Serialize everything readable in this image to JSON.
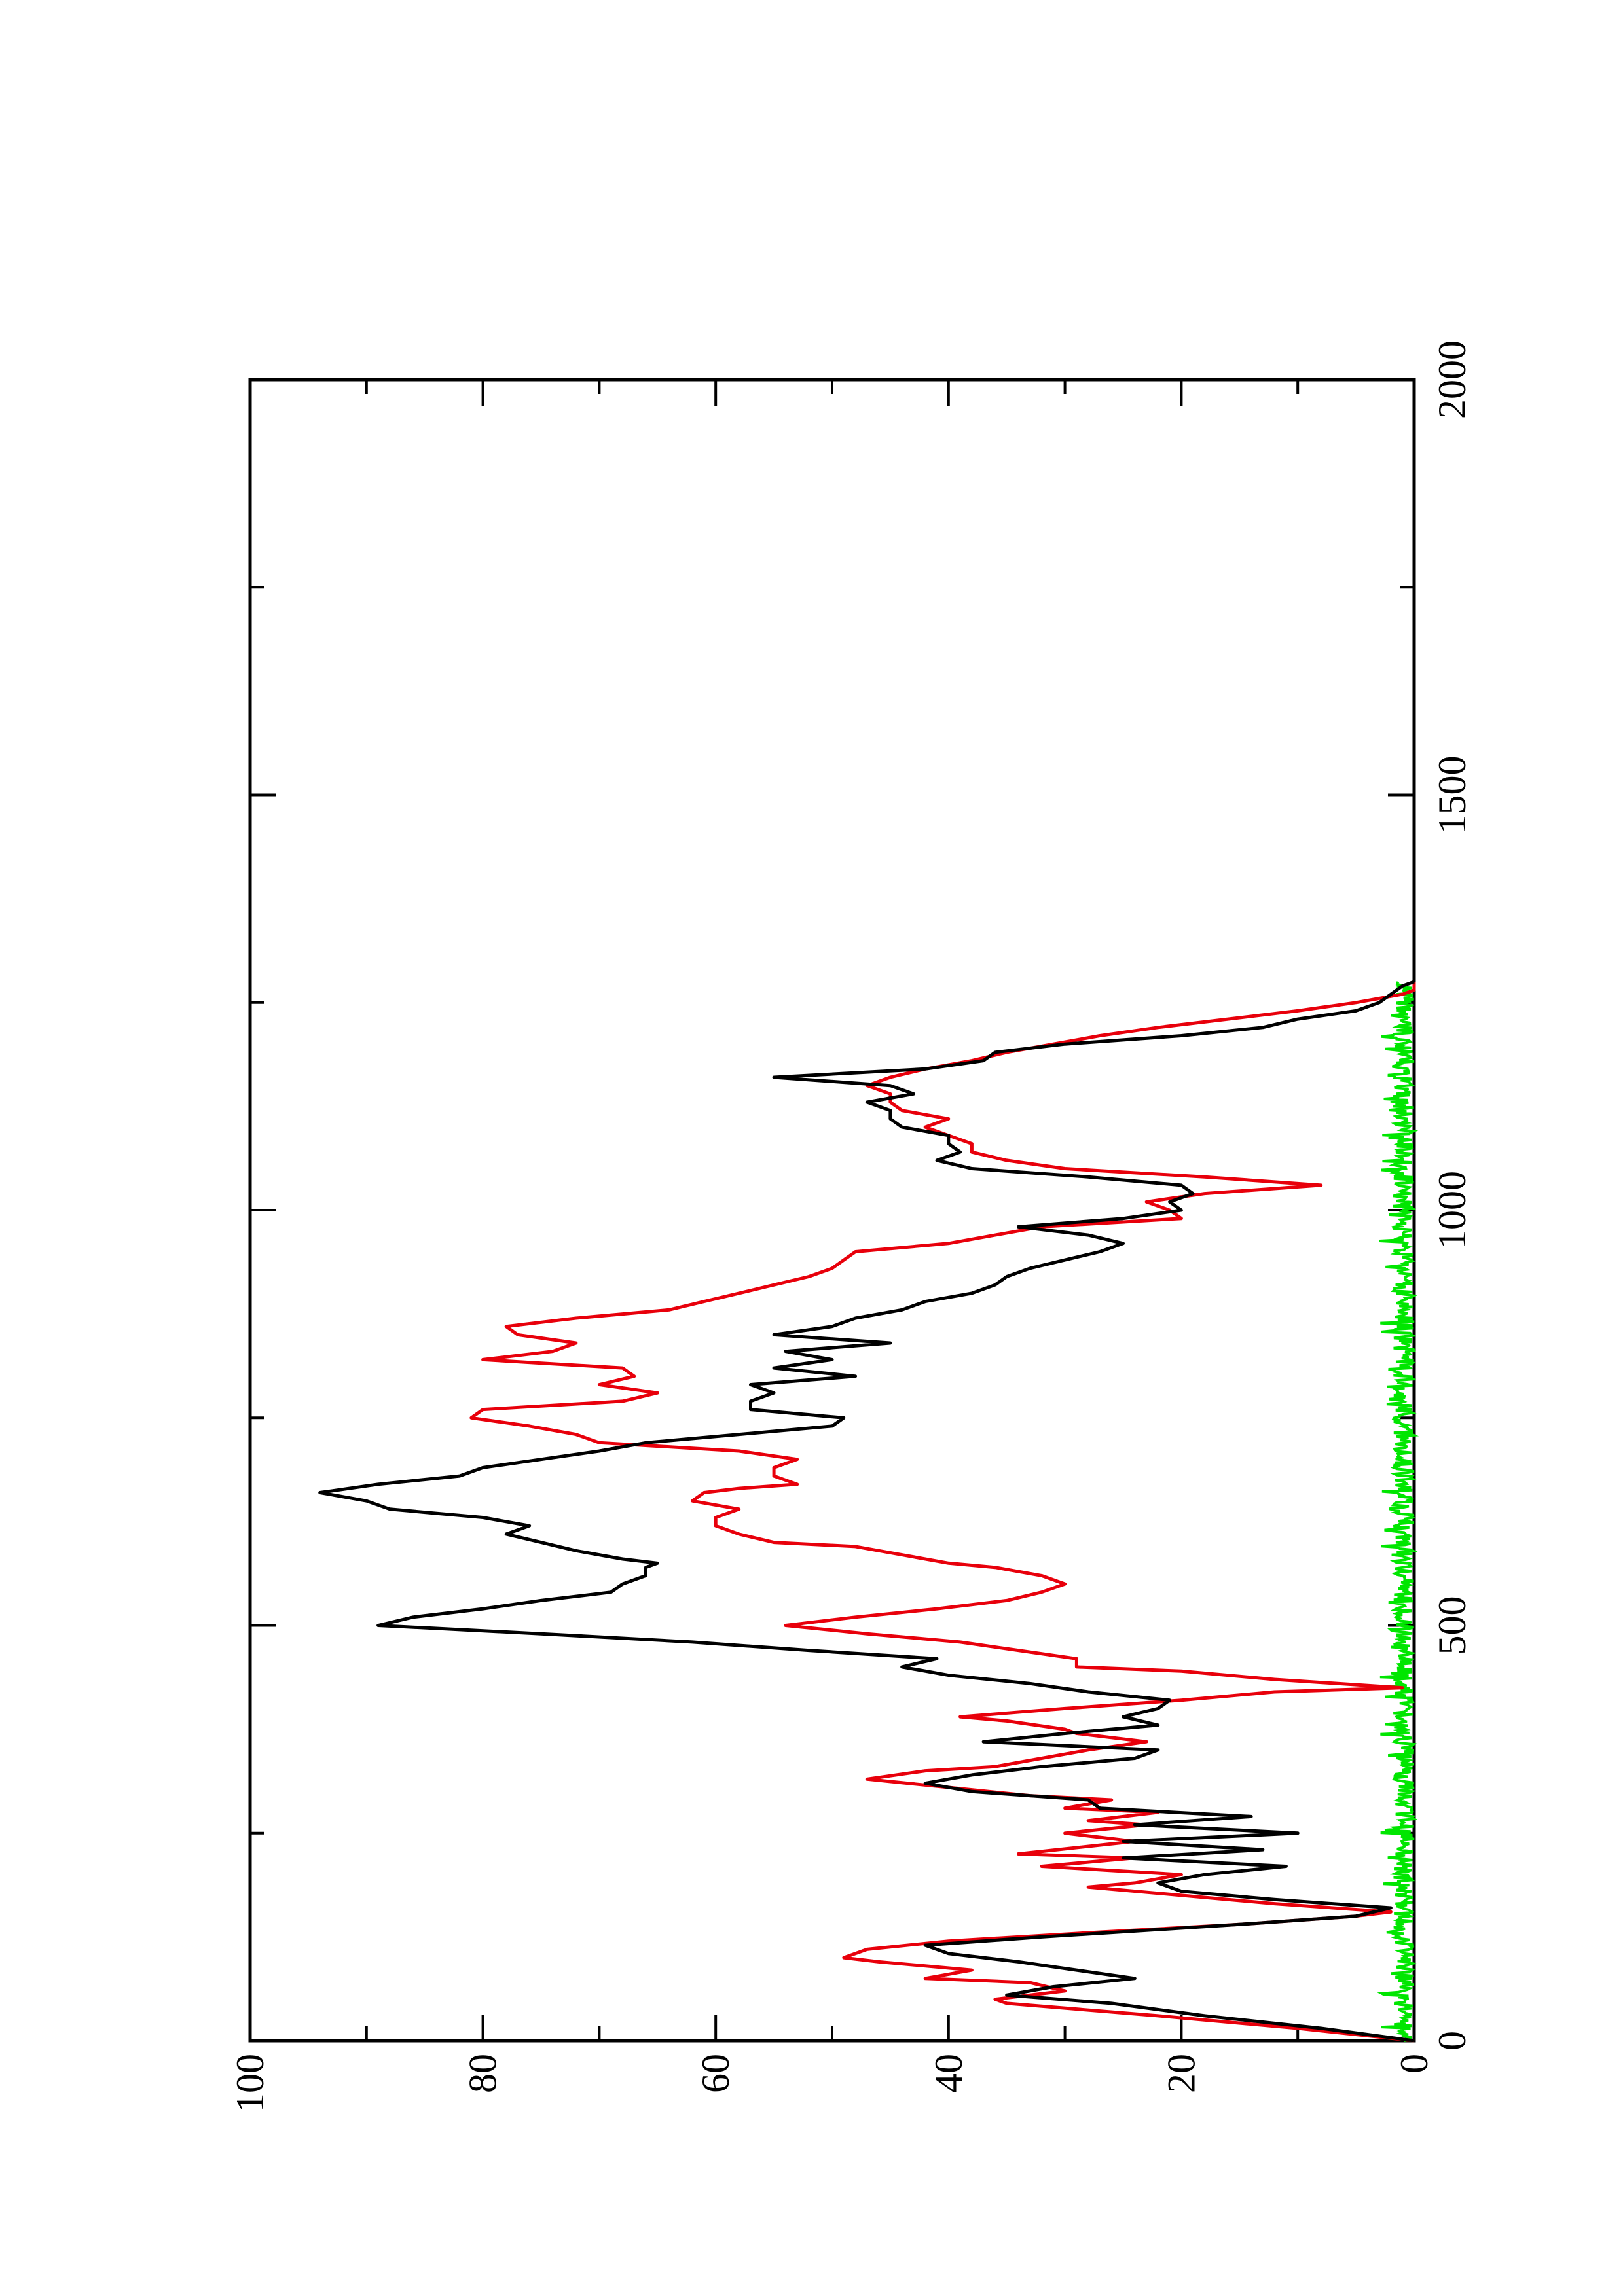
{
  "chart_data": {
    "type": "line",
    "orientation": "rotated-90-ccw",
    "title": "",
    "xlabel": "",
    "ylabel": "",
    "xlim": [
      0,
      2000
    ],
    "ylim": [
      0,
      100
    ],
    "x_ticks": [
      "0",
      "500",
      "1000",
      "1500",
      "2000"
    ],
    "y_ticks": [
      "0",
      "20",
      "40",
      "60",
      "80",
      "100"
    ],
    "grid": false,
    "legend": "none",
    "series": [
      {
        "color": "#000000",
        "x": [
          0,
          15,
          30,
          45,
          55,
          65,
          75,
          85,
          95,
          105,
          115,
          125,
          140,
          150,
          160,
          170,
          180,
          190,
          200,
          210,
          220,
          230,
          240,
          250,
          260,
          270,
          280,
          290,
          300,
          310,
          320,
          330,
          340,
          350,
          360,
          370,
          380,
          390,
          400,
          410,
          420,
          430,
          440,
          450,
          460,
          470,
          480,
          490,
          500,
          510,
          520,
          530,
          540,
          550,
          560,
          570,
          575,
          580,
          590,
          600,
          610,
          620,
          630,
          640,
          650,
          660,
          670,
          680,
          690,
          700,
          710,
          720,
          730,
          740,
          750,
          760,
          770,
          780,
          790,
          800,
          810,
          820,
          830,
          840,
          850,
          860,
          870,
          880,
          890,
          900,
          910,
          920,
          930,
          940,
          950,
          960,
          970,
          980,
          990,
          1000,
          1010,
          1020,
          1030,
          1040,
          1050,
          1060,
          1070,
          1080,
          1090,
          1100,
          1110,
          1120,
          1130,
          1140,
          1150,
          1160,
          1170,
          1180,
          1190,
          1200,
          1210,
          1220,
          1230,
          1240,
          1250,
          1260,
          1270,
          1275
        ],
        "y": [
          0,
          8,
          18,
          26,
          35,
          31,
          24,
          29,
          34,
          40,
          42,
          32,
          15,
          5,
          2,
          12,
          20,
          22,
          18,
          11,
          25,
          13,
          25,
          10,
          24,
          14,
          27,
          28,
          38,
          42,
          38,
          32,
          24,
          22,
          37,
          30,
          22,
          25,
          22,
          21,
          28,
          33,
          40,
          44,
          41,
          52,
          62,
          75,
          89,
          86,
          80,
          75,
          69,
          68,
          66,
          66,
          65,
          68,
          72,
          75,
          78,
          76,
          80,
          88,
          90,
          94,
          89,
          82,
          80,
          75,
          70,
          66,
          58,
          50,
          49,
          57,
          57,
          55,
          57,
          48,
          55,
          50,
          54,
          45,
          55,
          50,
          48,
          44,
          42,
          38,
          36,
          35,
          33,
          30,
          27,
          25,
          28,
          34,
          25,
          20,
          21,
          19,
          20,
          28,
          38,
          41,
          39,
          40,
          40,
          44,
          45,
          45,
          47,
          43,
          45,
          55,
          42,
          37,
          36,
          30,
          20,
          13,
          10,
          5,
          3,
          2,
          1,
          0
        ]
      },
      {
        "color": "#e8000b",
        "x": [
          0,
          15,
          30,
          45,
          50,
          60,
          70,
          75,
          85,
          95,
          100,
          110,
          120,
          130,
          140,
          150,
          155,
          165,
          175,
          185,
          190,
          200,
          210,
          220,
          225,
          240,
          250,
          260,
          265,
          275,
          280,
          290,
          295,
          305,
          315,
          325,
          330,
          340,
          350,
          360,
          370,
          375,
          385,
          390,
          400,
          410,
          420,
          425,
          435,
          445,
          450,
          460,
          470,
          480,
          490,
          500,
          510,
          520,
          530,
          540,
          550,
          560,
          570,
          575,
          585,
          595,
          600,
          610,
          620,
          630,
          640,
          650,
          660,
          665,
          670,
          680,
          690,
          700,
          710,
          720,
          730,
          740,
          750,
          760,
          770,
          780,
          790,
          800,
          810,
          820,
          830,
          840,
          850,
          860,
          870,
          880,
          890,
          900,
          910,
          920,
          930,
          940,
          950,
          960,
          970,
          980,
          990,
          1000,
          1010,
          1020,
          1030,
          1040,
          1050,
          1060,
          1070,
          1080,
          1090,
          1100,
          1110,
          1120,
          1130,
          1140,
          1150,
          1160,
          1170,
          1180,
          1190,
          1200,
          1210,
          1220,
          1230,
          1240,
          1250,
          1260,
          1265,
          1275
        ],
        "y": [
          0,
          10,
          22,
          35,
          36,
          30,
          33,
          42,
          38,
          46,
          49,
          47,
          40,
          28,
          15,
          5,
          2,
          12,
          20,
          28,
          24,
          20,
          32,
          24,
          34,
          24,
          30,
          23,
          28,
          22,
          30,
          26,
          33,
          40,
          47,
          42,
          36,
          32,
          28,
          23,
          29,
          30,
          35,
          39,
          30,
          20,
          12,
          1,
          12,
          20,
          29,
          29,
          34,
          39,
          47,
          54,
          48,
          41,
          35,
          32,
          30,
          32,
          36,
          40,
          44,
          48,
          55,
          58,
          60,
          60,
          58,
          62,
          61,
          58,
          53,
          55,
          55,
          53,
          58,
          70,
          72,
          76,
          81,
          80,
          68,
          65,
          70,
          67,
          68,
          80,
          74,
          72,
          77,
          78,
          72,
          64,
          61,
          58,
          55,
          52,
          50,
          49,
          48,
          40,
          36,
          32,
          20,
          21,
          23,
          18,
          8,
          18,
          30,
          35,
          38,
          38,
          40,
          42,
          40,
          44,
          45,
          45,
          47,
          45,
          42,
          38,
          35,
          31,
          27,
          22,
          16,
          10,
          5,
          1,
          0,
          0
        ]
      },
      {
        "color": "#00e600",
        "x_range": [
          0,
          1275
        ],
        "y_min": 0,
        "y_max": 3,
        "note_shape": "noise"
      }
    ]
  }
}
